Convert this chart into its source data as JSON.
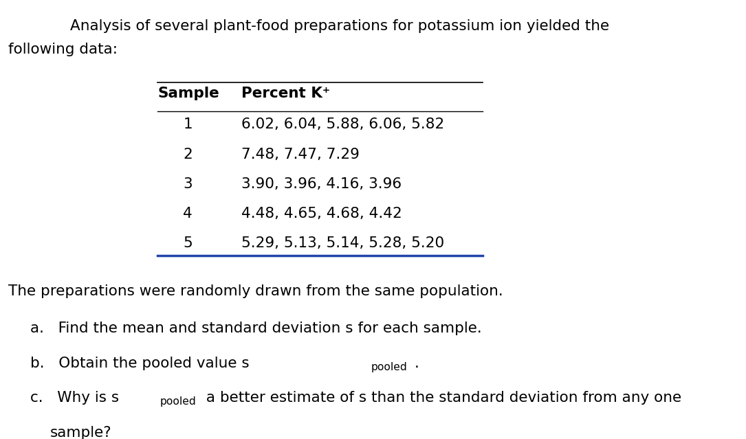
{
  "title_line1": "Analysis of several plant-food preparations for potassium ion yielded the",
  "title_line2": "following data:",
  "col1_header": "Sample",
  "col2_header": "Percent K⁺",
  "rows": [
    [
      "1",
      "6.02, 6.04, 5.88, 6.06, 5.82"
    ],
    [
      "2",
      "7.48, 7.47, 7.29"
    ],
    [
      "3",
      "3.90, 3.96, 4.16, 3.96"
    ],
    [
      "4",
      "4.48, 4.65, 4.68, 4.42"
    ],
    [
      "5",
      "5.29, 5.13, 5.14, 5.28, 5.20"
    ]
  ],
  "footer_line1": "The preparations were randomly drawn from the same population.",
  "footer_a": "a.   Find the mean and standard deviation s for each sample.",
  "footer_b_pre": "b.   Obtain the pooled value s",
  "footer_b_sub": "pooled",
  "footer_b_end": ".",
  "footer_c_pre": "c.   Why is s",
  "footer_c_sub": "pooled",
  "footer_c_end": " a better estimate of s than the standard deviation from any one",
  "footer_c2": "sample?",
  "bg_color": "#ffffff",
  "text_color": "#000000",
  "font_size": 15.5,
  "table_line_color_top": "#000000",
  "table_line_color_bot": "#2244aa"
}
